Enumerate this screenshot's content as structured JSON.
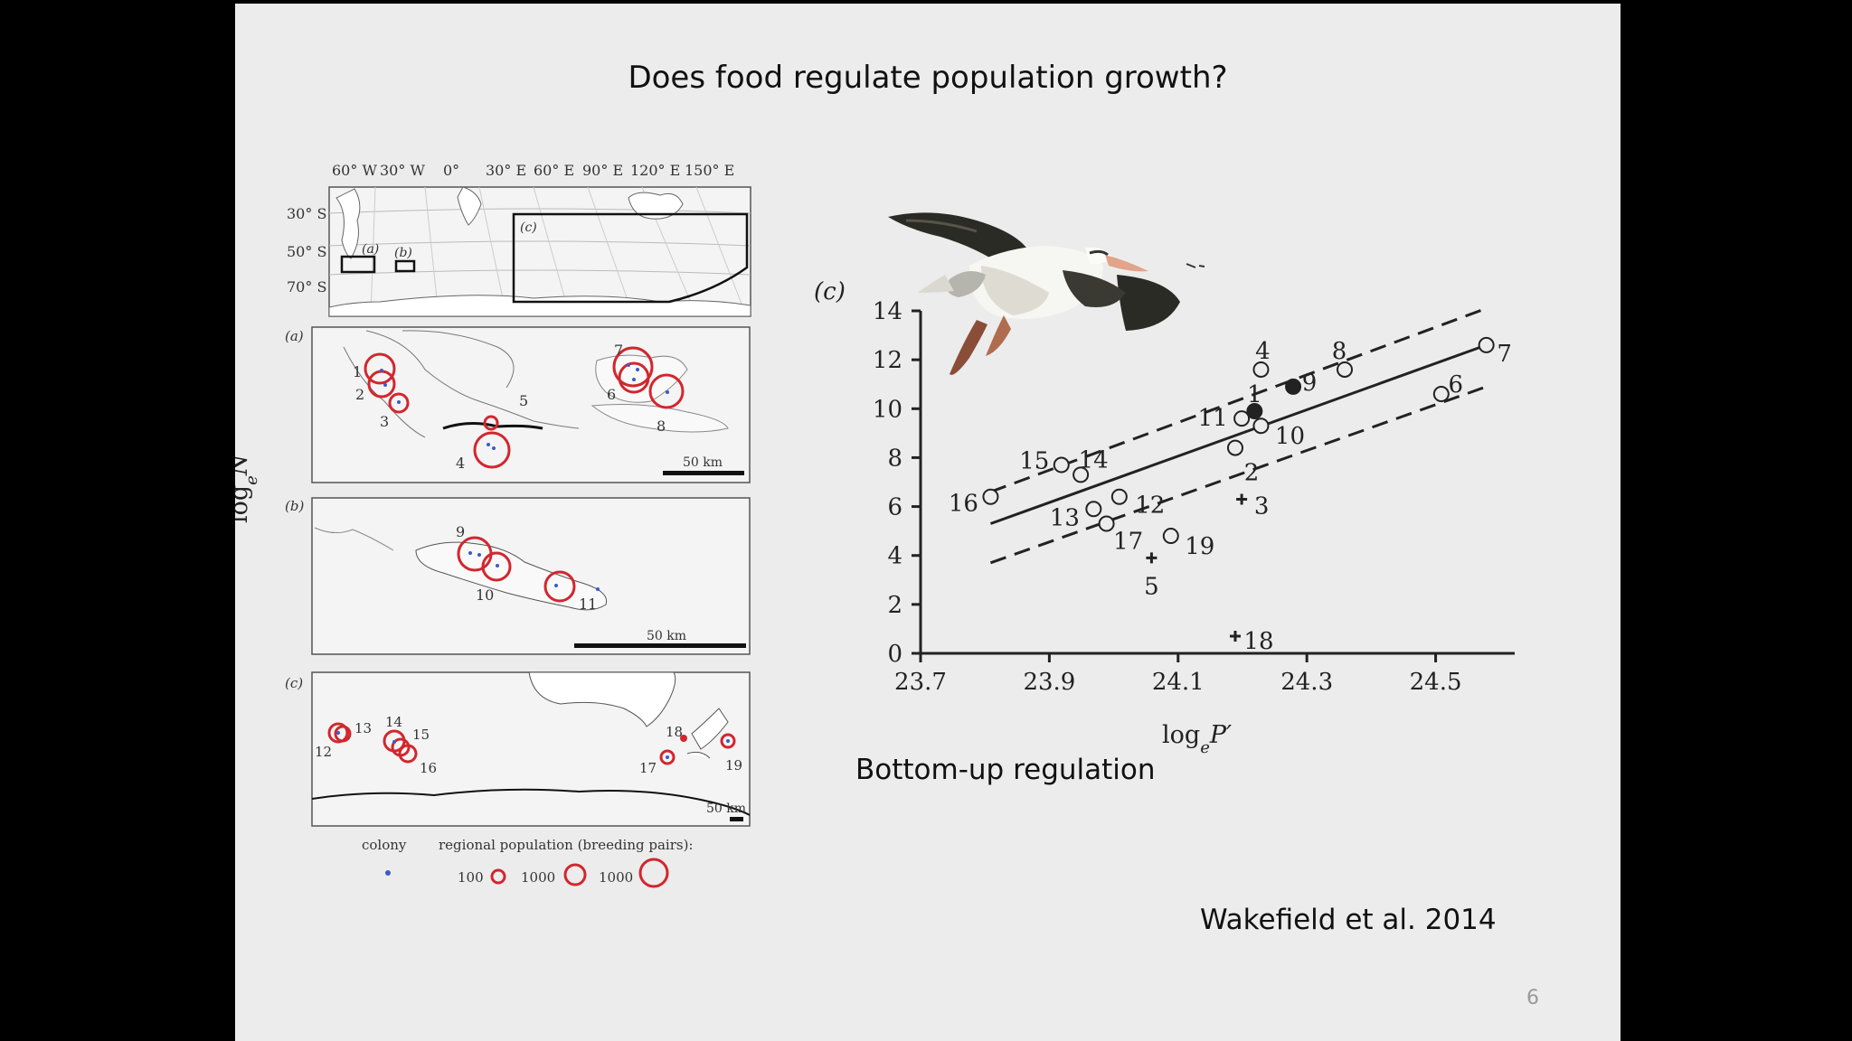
{
  "slide": {
    "title": "Does food regulate population growth?",
    "subtitle": "Bottom-up regulation",
    "citation": "Wakefield et al. 2014",
    "page_number": "6"
  },
  "map_figure": {
    "longitude_labels": [
      "60° W",
      "30° W",
      "0°",
      "30° E",
      "60° E",
      "90° E",
      "120° E",
      "150° E"
    ],
    "latitude_labels": [
      "30° S",
      "50° S",
      "70° S"
    ],
    "inset_labels": [
      "(a)",
      "(b)",
      "(c)"
    ],
    "panel_labels": [
      "(a)",
      "(b)",
      "(c)"
    ],
    "panel_a_sites": [
      "1",
      "2",
      "3",
      "4",
      "5",
      "6",
      "7",
      "8"
    ],
    "panel_b_sites": [
      "9",
      "10",
      "11"
    ],
    "panel_c_sites": [
      "12",
      "13",
      "14",
      "15",
      "16",
      "17",
      "18",
      "19"
    ],
    "scale_label": "50 km",
    "legend": {
      "colony_label": "colony",
      "regional_label": "regional population (breeding pairs):",
      "sizes": [
        "100",
        "1000",
        "1000"
      ]
    },
    "colors": {
      "circle": "#d2262e",
      "colony": "#3a5bc7"
    }
  },
  "chart_data": {
    "type": "scatter",
    "panel_label": "(c)",
    "xlabel": "log",
    "xlabel_sub": "e",
    "xlabel_var": "P′",
    "ylabel": "log",
    "ylabel_sub": "e",
    "ylabel_var": "N",
    "xlim": [
      23.7,
      24.62
    ],
    "ylim": [
      0,
      14
    ],
    "x_ticks": [
      "23.7",
      "23.9",
      "24.1",
      "24.3",
      "24.5"
    ],
    "x_tick_values": [
      23.7,
      23.9,
      24.1,
      24.3,
      24.5
    ],
    "y_ticks": [
      "0",
      "2",
      "4",
      "6",
      "8",
      "10",
      "12",
      "14"
    ],
    "y_tick_values": [
      0,
      2,
      4,
      6,
      8,
      10,
      12,
      14
    ],
    "points": [
      {
        "label": "1",
        "x": 24.23,
        "y": 9.9,
        "marker": "filled"
      },
      {
        "label": "2",
        "x": 24.2,
        "y": 8.4,
        "marker": "open"
      },
      {
        "label": "3",
        "x": 24.21,
        "y": 6.3,
        "marker": "plus"
      },
      {
        "label": "4",
        "x": 24.24,
        "y": 11.6,
        "marker": "open"
      },
      {
        "label": "5",
        "x": 24.07,
        "y": 3.9,
        "marker": "plus"
      },
      {
        "label": "6",
        "x": 24.52,
        "y": 10.6,
        "marker": "open"
      },
      {
        "label": "7",
        "x": 24.59,
        "y": 12.6,
        "marker": "open"
      },
      {
        "label": "8",
        "x": 24.37,
        "y": 11.6,
        "marker": "open"
      },
      {
        "label": "9",
        "x": 24.29,
        "y": 10.9,
        "marker": "filled"
      },
      {
        "label": "10",
        "x": 24.24,
        "y": 9.3,
        "marker": "open"
      },
      {
        "label": "11",
        "x": 24.21,
        "y": 9.6,
        "marker": "open"
      },
      {
        "label": "12",
        "x": 24.02,
        "y": 6.4,
        "marker": "open"
      },
      {
        "label": "13",
        "x": 23.98,
        "y": 5.9,
        "marker": "open"
      },
      {
        "label": "14",
        "x": 23.96,
        "y": 7.3,
        "marker": "open"
      },
      {
        "label": "15",
        "x": 23.93,
        "y": 7.7,
        "marker": "open"
      },
      {
        "label": "16",
        "x": 23.82,
        "y": 6.4,
        "marker": "open"
      },
      {
        "label": "17",
        "x": 24.0,
        "y": 5.3,
        "marker": "open"
      },
      {
        "label": "18",
        "x": 24.2,
        "y": 0.7,
        "marker": "plus"
      },
      {
        "label": "19",
        "x": 24.1,
        "y": 4.8,
        "marker": "open"
      }
    ],
    "fit_line": {
      "x": [
        23.82,
        24.59
      ],
      "y": [
        5.3,
        12.6
      ]
    },
    "ci_upper": {
      "x": [
        23.82,
        24.59
      ],
      "y": [
        6.6,
        14.1
      ]
    },
    "ci_lower": {
      "x": [
        23.82,
        24.59
      ],
      "y": [
        3.7,
        10.9
      ]
    },
    "grid": false,
    "legend": "none"
  }
}
